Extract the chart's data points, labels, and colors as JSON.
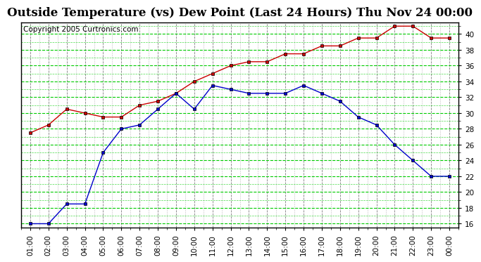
{
  "title": "Outside Temperature (vs) Dew Point (Last 24 Hours) Thu Nov 24 00:00",
  "copyright": "Copyright 2005 Curtronics.com",
  "x_labels": [
    "01:00",
    "02:00",
    "03:00",
    "04:00",
    "05:00",
    "06:00",
    "07:00",
    "08:00",
    "09:00",
    "10:00",
    "11:00",
    "12:00",
    "13:00",
    "14:00",
    "15:00",
    "16:00",
    "17:00",
    "18:00",
    "19:00",
    "20:00",
    "21:00",
    "22:00",
    "23:00",
    "00:00"
  ],
  "temp_values": [
    27.5,
    28.5,
    30.5,
    30.0,
    29.5,
    29.5,
    31.0,
    31.5,
    32.5,
    34.0,
    35.0,
    36.0,
    36.5,
    36.5,
    37.5,
    37.5,
    38.5,
    38.5,
    39.5,
    39.5,
    41.0,
    41.0,
    39.5,
    39.5
  ],
  "dew_values": [
    16.0,
    16.0,
    18.5,
    18.5,
    25.0,
    28.0,
    28.5,
    30.5,
    32.5,
    30.5,
    33.5,
    33.0,
    32.5,
    32.5,
    32.5,
    33.5,
    32.5,
    31.5,
    29.5,
    28.5,
    26.0,
    24.0,
    22.0,
    22.0
  ],
  "temp_color": "#cc0000",
  "dew_color": "#0000cc",
  "grid_color": "#00cc00",
  "vgrid_color": "#7f7f7f",
  "background_color": "#ffffff",
  "ylim": [
    15.5,
    41.5
  ],
  "yticks": [
    16.0,
    18.0,
    20.0,
    22.0,
    24.0,
    26.0,
    28.0,
    30.0,
    32.0,
    34.0,
    36.0,
    38.0,
    40.0
  ],
  "title_fontsize": 12,
  "copyright_fontsize": 7.5
}
